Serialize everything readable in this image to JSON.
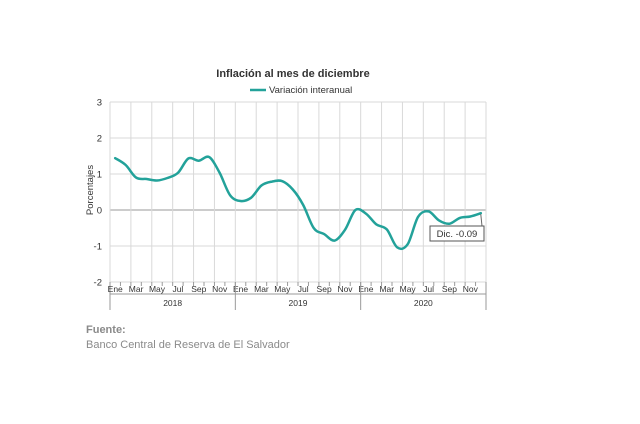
{
  "chart_data": {
    "type": "line",
    "title": "Inflación al mes de diciembre",
    "ylabel": "Porcentajes",
    "xlabel": "",
    "ylim": [
      -2,
      3
    ],
    "yticks": [
      "3",
      "2",
      "1",
      "0",
      "-1",
      "-2"
    ],
    "grid": true,
    "legend": "top-center",
    "series_color": "#23a29a",
    "month_labels": [
      "Ene",
      "Mar",
      "May",
      "Jul",
      "Sep",
      "Nov",
      "Ene",
      "Mar",
      "May",
      "Jul",
      "Sep",
      "Nov",
      "Ene",
      "Mar",
      "May",
      "Jul",
      "Sep",
      "Nov"
    ],
    "years": [
      "2018",
      "2019",
      "2020"
    ],
    "series": [
      {
        "name": "Variación interanual",
        "x": [
          "2018-01",
          "2018-02",
          "2018-03",
          "2018-04",
          "2018-05",
          "2018-06",
          "2018-07",
          "2018-08",
          "2018-09",
          "2018-10",
          "2018-11",
          "2018-12",
          "2019-01",
          "2019-02",
          "2019-03",
          "2019-04",
          "2019-05",
          "2019-06",
          "2019-07",
          "2019-08",
          "2019-09",
          "2019-10",
          "2019-11",
          "2019-12",
          "2020-01",
          "2020-02",
          "2020-03",
          "2020-04",
          "2020-05",
          "2020-06",
          "2020-07",
          "2020-08",
          "2020-09",
          "2020-10",
          "2020-11",
          "2020-12"
        ],
        "values": [
          1.44,
          1.25,
          0.9,
          0.86,
          0.82,
          0.89,
          1.03,
          1.43,
          1.37,
          1.47,
          1.03,
          0.41,
          0.25,
          0.34,
          0.68,
          0.79,
          0.8,
          0.57,
          0.14,
          -0.5,
          -0.67,
          -0.85,
          -0.55,
          0.0,
          -0.1,
          -0.4,
          -0.54,
          -1.04,
          -0.95,
          -0.19,
          -0.04,
          -0.29,
          -0.38,
          -0.22,
          -0.18,
          -0.09
        ]
      }
    ],
    "annotation": "Dic. -0.09"
  },
  "source": {
    "label": "Fuente:",
    "text": "Banco Central de Reserva de El Salvador"
  }
}
